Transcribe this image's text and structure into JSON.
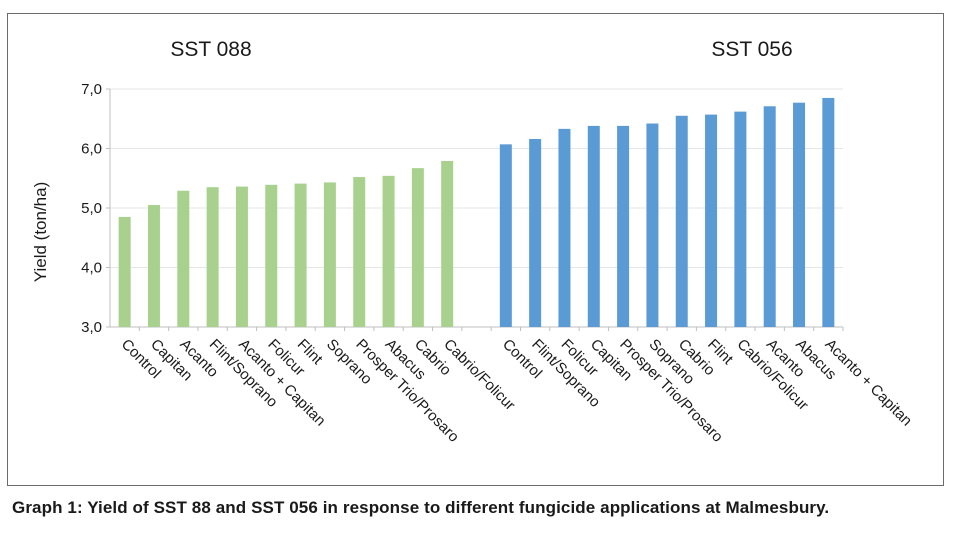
{
  "caption": "Graph 1: Yield of SST 88 and SST 056 in response to different fungicide applications at Malmesbury.",
  "chart_data": {
    "type": "bar",
    "ylabel": "Yield (ton/ha)",
    "ylim": [
      3.0,
      7.0
    ],
    "yticks": [
      "3,0",
      "4,0",
      "5,0",
      "6,0",
      "7,0"
    ],
    "ytick_values": [
      3,
      4,
      5,
      6,
      7
    ],
    "grid": true,
    "groups": [
      {
        "name": "SST 088",
        "color": "#a9d18e",
        "categories": [
          "Control",
          "Capitan",
          "Acanto",
          "Flint/Soprano",
          "Acanto + Capitan",
          "Folicur",
          "Flint",
          "Soprano",
          "Prosper Trio/Prosaro",
          "Abacus",
          "Cabrio",
          "Cabrio/Folicur"
        ],
        "values": [
          4.85,
          5.05,
          5.29,
          5.35,
          5.36,
          5.39,
          5.41,
          5.43,
          5.52,
          5.54,
          5.67,
          5.79
        ]
      },
      {
        "name": "SST 056",
        "color": "#5b9bd5",
        "categories": [
          "Control",
          "Flint/Soprano",
          "Folicur",
          "Capitan",
          "Prosper Trio/Prosaro",
          "Soprano",
          "Cabrio",
          "Flint",
          "Cabrio/Folicur",
          "Acanto",
          "Abacus",
          "Acanto + Capitan"
        ],
        "values": [
          6.07,
          6.16,
          6.33,
          6.38,
          6.38,
          6.42,
          6.55,
          6.57,
          6.62,
          6.71,
          6.77,
          6.85
        ]
      }
    ]
  }
}
